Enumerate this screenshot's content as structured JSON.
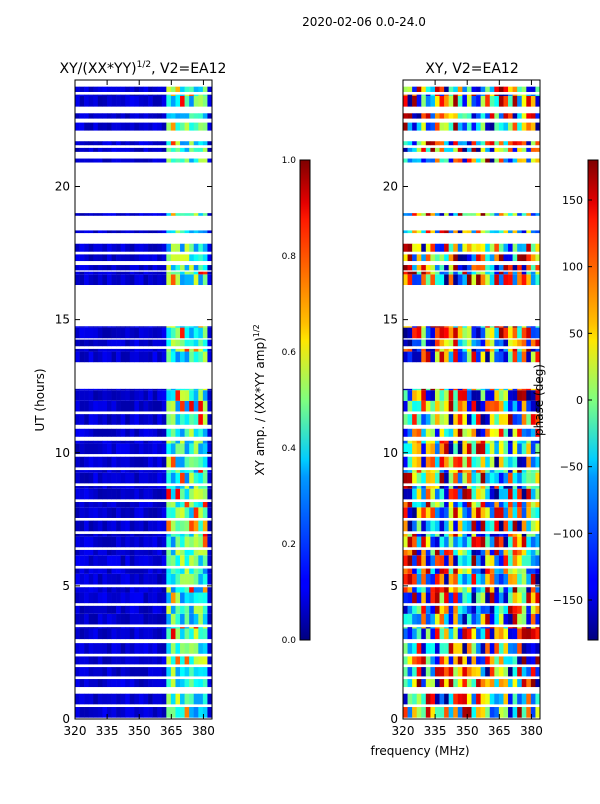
{
  "figure": {
    "suptitle": "2020-02-06 0.0-24.0",
    "xlabel": "frequency (MHz)",
    "ylabel": "UT (hours)"
  },
  "chart_data": [
    {
      "type": "heatmap",
      "title_main": "XY/(XX*YY)",
      "title_exp": "1/2",
      "title_tail": ", V2=EA12",
      "x_ticks": [
        320,
        335,
        350,
        365,
        380
      ],
      "y_ticks": [
        0,
        5,
        10,
        15,
        20
      ],
      "xlim": [
        320,
        384
      ],
      "ylim": [
        0,
        24
      ],
      "colorbar": {
        "label_main": "XY amp. / (XX*YY amp)",
        "label_exp": "1/2",
        "ticks": [
          "0.0",
          "0.2",
          "0.4",
          "0.6",
          "0.8",
          "1.0"
        ],
        "range": [
          0,
          1
        ]
      },
      "value_description": "mostly low amplitude (~0.05) with brighter channels near 362-380 MHz"
    },
    {
      "type": "heatmap",
      "title": "XY, V2=EA12",
      "x_ticks": [
        320,
        335,
        350,
        365,
        380
      ],
      "y_ticks": [
        0,
        5,
        10,
        15,
        20
      ],
      "xlim": [
        320,
        384
      ],
      "ylim": [
        0,
        24
      ],
      "colorbar": {
        "label": "phase (deg)",
        "ticks": [
          "150",
          "100",
          "50",
          "0",
          "−50",
          "−100",
          "−150"
        ],
        "tick_values": [
          150,
          100,
          50,
          0,
          -50,
          -100,
          -150
        ],
        "range": [
          -180,
          180
        ]
      },
      "value_description": "phase varying between -180 and 180 degrees"
    }
  ],
  "coverage_hours": [
    [
      0.05,
      0.45
    ],
    [
      0.55,
      0.95
    ],
    [
      1.2,
      1.5
    ],
    [
      1.6,
      1.95
    ],
    [
      2.05,
      2.35
    ],
    [
      2.45,
      2.85
    ],
    [
      3.0,
      3.45
    ],
    [
      3.55,
      4.25
    ],
    [
      4.35,
      4.95
    ],
    [
      5.05,
      5.65
    ],
    [
      5.75,
      6.35
    ],
    [
      6.45,
      6.95
    ],
    [
      7.05,
      7.45
    ],
    [
      7.55,
      8.15
    ],
    [
      8.25,
      8.75
    ],
    [
      8.85,
      9.35
    ],
    [
      9.45,
      9.85
    ],
    [
      9.95,
      10.45
    ],
    [
      10.6,
      10.9
    ],
    [
      11.05,
      11.45
    ],
    [
      11.55,
      12.4
    ],
    [
      13.4,
      13.9
    ],
    [
      14.0,
      14.25
    ],
    [
      14.3,
      14.75
    ],
    [
      16.3,
      16.8
    ],
    [
      16.85,
      17.05
    ],
    [
      17.2,
      17.45
    ],
    [
      17.55,
      17.85
    ],
    [
      18.25,
      18.35
    ],
    [
      18.9,
      19.0
    ],
    [
      20.9,
      21.05
    ],
    [
      21.3,
      21.45
    ],
    [
      21.55,
      21.7
    ],
    [
      22.1,
      22.4
    ],
    [
      22.55,
      22.75
    ],
    [
      23.0,
      23.45
    ],
    [
      23.55,
      23.75
    ]
  ]
}
